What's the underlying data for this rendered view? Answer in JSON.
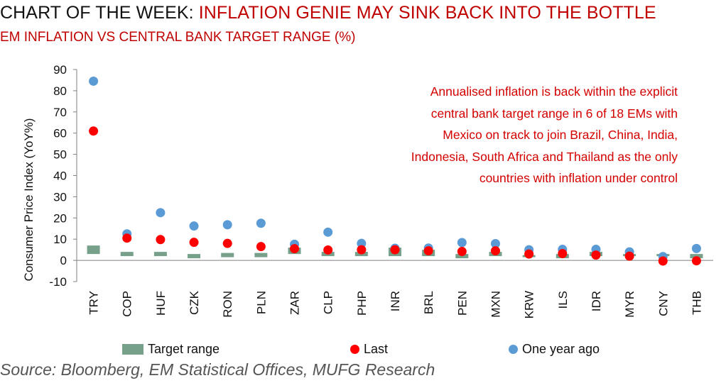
{
  "header": {
    "title_prefix": "CHART OF THE WEEK:",
    "title_highlight": "INFLATION GENIE MAY SINK BACK INTO THE BOTTLE",
    "subtitle": "EM INFLATION VS CENTRAL BANK TARGET RANGE (%)"
  },
  "annotation": {
    "lines": [
      "Annualised inflation is back within the explicit",
      "central bank target range in 6 of 18 EMs with",
      "Mexico on track to join Brazil, China, India,",
      "Indonesia, South Africa and Thailand as the only",
      "countries with inflation under control"
    ]
  },
  "source": "Source: Bloomberg, EM Statistical Offices, MUFG Research",
  "colors": {
    "target": "#76a08a",
    "last": "#ff0000",
    "year_ago": "#5b9bd5",
    "title_red": "#c00000"
  },
  "chart_data": {
    "type": "scatter",
    "ylabel": "Consumer Price Index (YoY%)",
    "xlabel": "",
    "ylim": [
      -10,
      90
    ],
    "yticks": [
      -10,
      0,
      10,
      20,
      30,
      40,
      50,
      60,
      70,
      80,
      90
    ],
    "categories": [
      "TRY",
      "COP",
      "HUF",
      "CZK",
      "RON",
      "PLN",
      "ZAR",
      "CLP",
      "PHP",
      "INR",
      "BRL",
      "PEN",
      "MXN",
      "KRW",
      "ILS",
      "IDR",
      "MYR",
      "CNY",
      "THB"
    ],
    "target_range": [
      [
        3,
        7
      ],
      [
        2,
        4
      ],
      [
        2,
        4
      ],
      [
        1,
        3
      ],
      [
        1.5,
        3.5
      ],
      [
        1.5,
        3.5
      ],
      [
        3,
        6
      ],
      [
        2,
        4
      ],
      [
        2,
        4
      ],
      [
        2,
        6
      ],
      [
        2,
        5
      ],
      [
        1,
        3
      ],
      [
        2,
        4
      ],
      [
        1.5,
        2.5
      ],
      [
        1,
        3
      ],
      [
        2,
        4
      ],
      [
        2,
        3
      ],
      [
        2,
        3
      ],
      [
        1,
        3
      ]
    ],
    "series": [
      {
        "name": "Last",
        "values": [
          61,
          10.5,
          9.8,
          8.5,
          8,
          6.5,
          5.5,
          4.9,
          5,
          5,
          4.5,
          4.2,
          4.5,
          3,
          3.2,
          2.5,
          2,
          -0.3,
          -0.2
        ]
      },
      {
        "name": "One year ago",
        "values": [
          84.5,
          12.5,
          22.5,
          16.2,
          16.8,
          17.5,
          7.6,
          13.3,
          8,
          5.7,
          5.8,
          8.4,
          7.9,
          5,
          5.2,
          5.2,
          4,
          1.8,
          5.6
        ]
      }
    ],
    "legend": {
      "position": "bottom",
      "entries": [
        "Target range",
        "Last",
        "One year ago"
      ]
    }
  }
}
